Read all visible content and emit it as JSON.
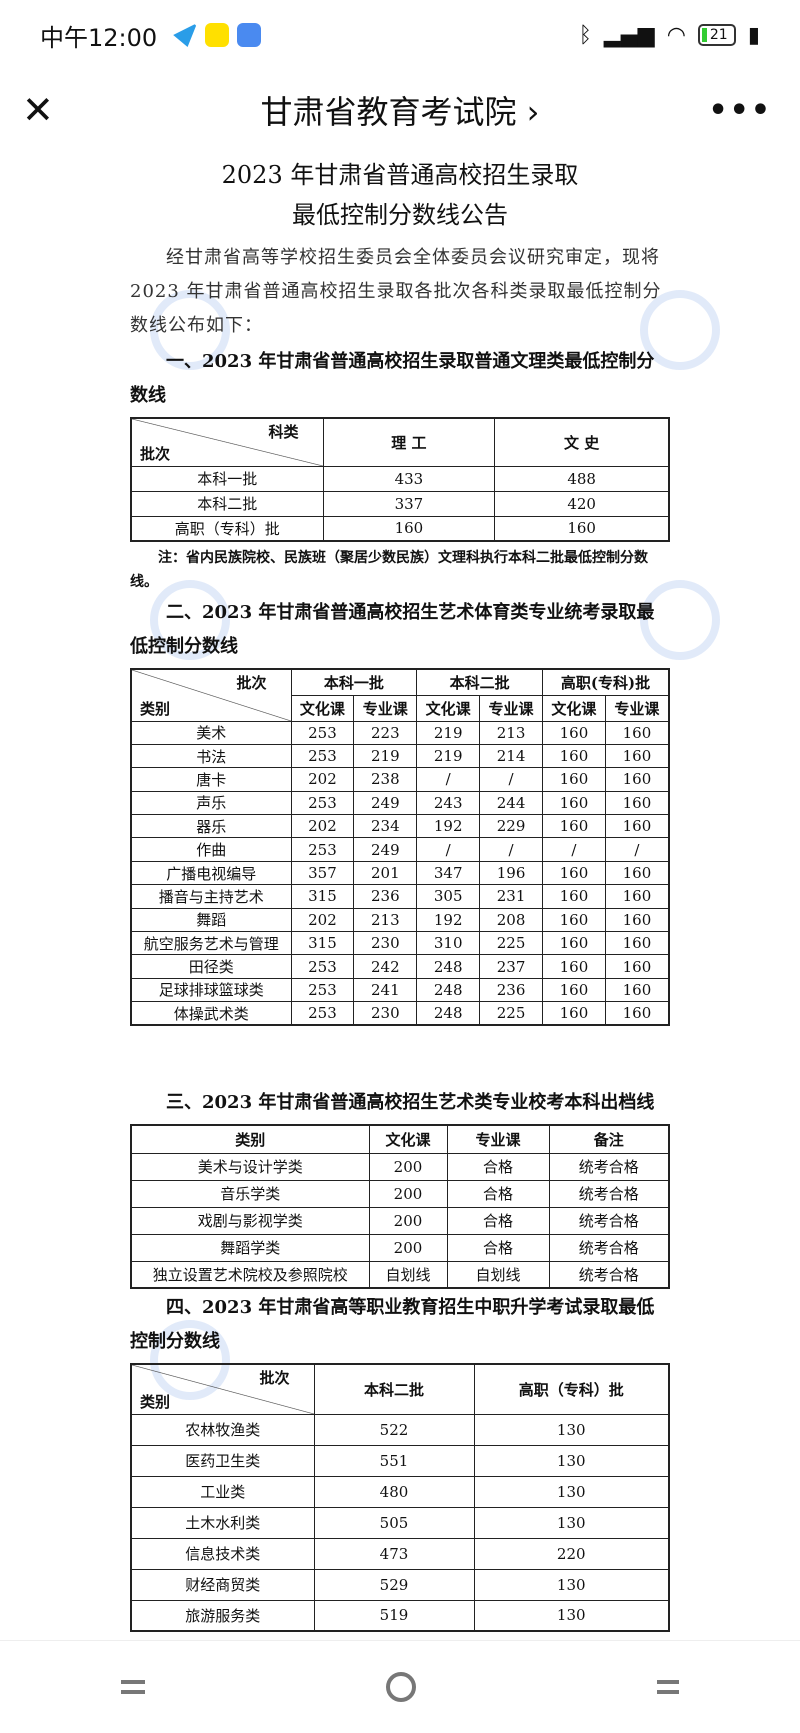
{
  "status_bar": {
    "time": "中午12:00",
    "battery": "21",
    "icons": [
      "telegram-icon",
      "xianyu-icon",
      "mi-icon",
      "bluetooth-icon",
      "signal-icon",
      "wifi-icon",
      "battery-icon",
      "charging-icon"
    ]
  },
  "nav": {
    "title": "甘肃省教育考试院 ›",
    "close": "✕",
    "more": "•••"
  },
  "doc": {
    "title_line1": "2023 年甘肃省普通高校招生录取",
    "title_line2": "最低控制分数线公告",
    "intro": "经甘肃省高等学校招生委员会全体委员会议研究审定，现将 2023 年甘肃省普通高校招生录取各批次各科类录取最低控制分数线公布如下：",
    "watermark": "甘肃省教育考试院",
    "section1": {
      "heading": "一、2023 年甘肃省普通高校招生录取普通文理类最低控制分数线",
      "corner_top": "科类",
      "corner_bottom": "批次",
      "columns": [
        "理 工",
        "文 史"
      ],
      "rows": [
        [
          "本科一批",
          "433",
          "488"
        ],
        [
          "本科二批",
          "337",
          "420"
        ],
        [
          "高职（专科）批",
          "160",
          "160"
        ]
      ],
      "note": "注：省内民族院校、民族班（聚居少数民族）文理科执行本科二批最低控制分数线。"
    },
    "section2": {
      "heading": "二、2023 年甘肃省普通高校招生艺术体育类专业统考录取最低控制分数线",
      "corner_top": "批次",
      "corner_bottom": "类别",
      "groups": [
        "本科一批",
        "本科二批",
        "高职(专科)批"
      ],
      "sub": [
        "文化课",
        "专业课"
      ],
      "rows": [
        [
          "美术",
          "253",
          "223",
          "219",
          "213",
          "160",
          "160"
        ],
        [
          "书法",
          "253",
          "219",
          "219",
          "214",
          "160",
          "160"
        ],
        [
          "唐卡",
          "202",
          "238",
          "/",
          "/",
          "160",
          "160"
        ],
        [
          "声乐",
          "253",
          "249",
          "243",
          "244",
          "160",
          "160"
        ],
        [
          "器乐",
          "202",
          "234",
          "192",
          "229",
          "160",
          "160"
        ],
        [
          "作曲",
          "253",
          "249",
          "/",
          "/",
          "/",
          "/"
        ],
        [
          "广播电视编导",
          "357",
          "201",
          "347",
          "196",
          "160",
          "160"
        ],
        [
          "播音与主持艺术",
          "315",
          "236",
          "305",
          "231",
          "160",
          "160"
        ],
        [
          "舞蹈",
          "202",
          "213",
          "192",
          "208",
          "160",
          "160"
        ],
        [
          "航空服务艺术与管理",
          "315",
          "230",
          "310",
          "225",
          "160",
          "160"
        ],
        [
          "田径类",
          "253",
          "242",
          "248",
          "237",
          "160",
          "160"
        ],
        [
          "足球排球篮球类",
          "253",
          "241",
          "248",
          "236",
          "160",
          "160"
        ],
        [
          "体操武术类",
          "253",
          "230",
          "248",
          "225",
          "160",
          "160"
        ]
      ]
    },
    "section3": {
      "heading": "三、2023 年甘肃省普通高校招生艺术类专业校考本科出档线",
      "columns": [
        "类别",
        "文化课",
        "专业课",
        "备注"
      ],
      "rows": [
        [
          "美术与设计学类",
          "200",
          "合格",
          "统考合格"
        ],
        [
          "音乐学类",
          "200",
          "合格",
          "统考合格"
        ],
        [
          "戏剧与影视学类",
          "200",
          "合格",
          "统考合格"
        ],
        [
          "舞蹈学类",
          "200",
          "合格",
          "统考合格"
        ],
        [
          "独立设置艺术院校及参照院校",
          "自划线",
          "自划线",
          "统考合格"
        ]
      ]
    },
    "section4": {
      "heading": "四、2023 年甘肃省高等职业教育招生中职升学考试录取最低控制分数线",
      "corner_top": "批次",
      "corner_bottom": "类别",
      "columns": [
        "本科二批",
        "高职（专科）批"
      ],
      "rows": [
        [
          "农林牧渔类",
          "522",
          "130"
        ],
        [
          "医药卫生类",
          "551",
          "130"
        ],
        [
          "工业类",
          "480",
          "130"
        ],
        [
          "土木水利类",
          "505",
          "130"
        ],
        [
          "信息技术类",
          "473",
          "220"
        ],
        [
          "财经商贸类",
          "529",
          "130"
        ],
        [
          "旅游服务类",
          "519",
          "130"
        ]
      ]
    }
  },
  "bottom_nav": {
    "icons": [
      "menu-icon",
      "home-icon",
      "back-icon"
    ]
  }
}
